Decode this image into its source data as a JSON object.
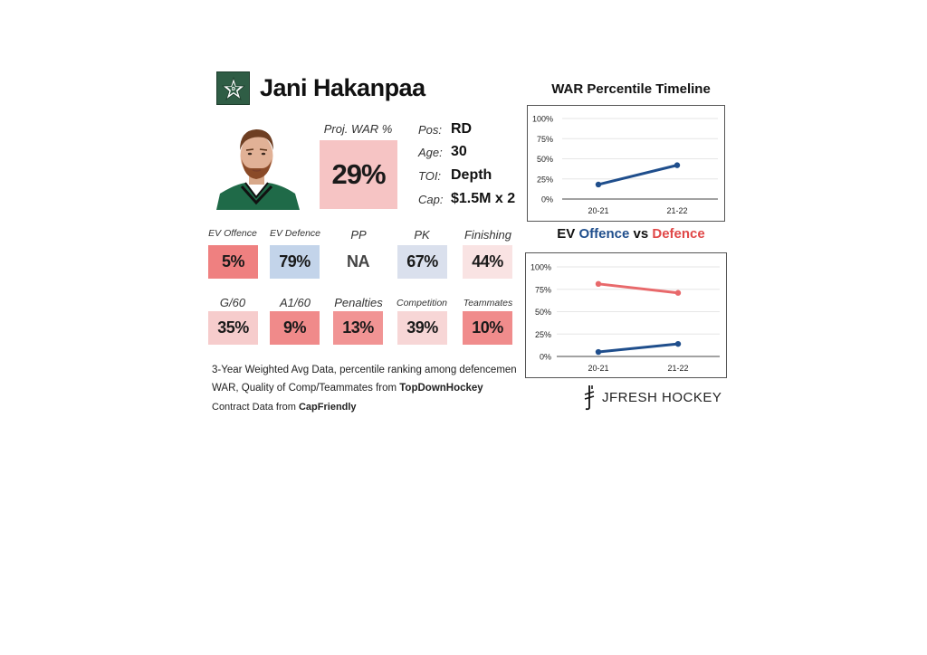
{
  "player": {
    "name": "Jani Hakanpaa",
    "team_logo": "dallas-stars-star-icon"
  },
  "war": {
    "label": "Proj. WAR %",
    "value": "29%",
    "percentile": 29
  },
  "info": [
    {
      "label": "Pos:",
      "value": "RD"
    },
    {
      "label": "Age:",
      "value": "30"
    },
    {
      "label": "TOI:",
      "value": "Depth"
    },
    {
      "label": "Cap:",
      "value": "$1.5M x 2"
    }
  ],
  "stats_row1": [
    {
      "label": "EV Offence",
      "value": "5%",
      "pct": 5
    },
    {
      "label": "EV Defence",
      "value": "79%",
      "pct": 79
    },
    {
      "label": "PP",
      "value": "NA",
      "pct": null
    },
    {
      "label": "PK",
      "value": "67%",
      "pct": 67
    },
    {
      "label": "Finishing",
      "value": "44%",
      "pct": 44
    }
  ],
  "stats_row2": [
    {
      "label": "G/60",
      "value": "35%",
      "pct": 35
    },
    {
      "label": "A1/60",
      "value": "9%",
      "pct": 9
    },
    {
      "label": "Penalties",
      "value": "13%",
      "pct": 13
    },
    {
      "label": "Competition",
      "value": "39%",
      "pct": 39
    },
    {
      "label": "Teammates",
      "value": "10%",
      "pct": 10
    }
  ],
  "footnotes": {
    "line1": "3-Year Weighted Avg Data, percentile ranking among defencemen",
    "line2_prefix": "WAR, Quality of Comp/Teammates from ",
    "line2_source": "TopDownHockey",
    "line3_prefix": "Contract Data from ",
    "line3_source": "CapFriendly"
  },
  "brand": {
    "text": "JFRESH HOCKEY"
  },
  "colors": {
    "offence_blue": "#1f4e8c",
    "defence_red": "#e8696b",
    "good_blue": "#a9c6e6",
    "poor_red": "#ee7373",
    "team_green": "#2f5d45"
  },
  "chart_data": [
    {
      "type": "line",
      "title": "WAR Percentile Timeline",
      "categories": [
        "20-21",
        "21-22"
      ],
      "series": [
        {
          "values": [
            18,
            42
          ],
          "color": "#1f4e8c"
        }
      ],
      "ylim": [
        0,
        100
      ],
      "yticks": [
        "0%",
        "25%",
        "50%",
        "75%",
        "100%"
      ],
      "grid": true
    },
    {
      "type": "line",
      "title_parts": [
        "EV ",
        "Offence",
        " vs ",
        "Defence"
      ],
      "categories": [
        "20-21",
        "21-22"
      ],
      "series": [
        {
          "name": "Offence",
          "values": [
            5,
            14
          ],
          "color": "#1f4e8c"
        },
        {
          "name": "Defence",
          "values": [
            81,
            71
          ],
          "color": "#e8696b"
        }
      ],
      "ylim": [
        0,
        100
      ],
      "yticks": [
        "0%",
        "25%",
        "50%",
        "75%",
        "100%"
      ],
      "grid": true
    }
  ]
}
